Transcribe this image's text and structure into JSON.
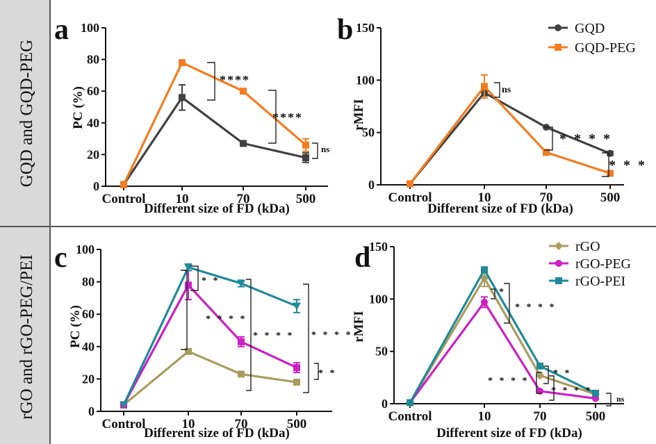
{
  "figure": {
    "row_labels": [
      "GQD and GQD-PEG",
      "rGO and rGO-PEG/PEI"
    ]
  },
  "colors": {
    "gqd": "#404040",
    "gqd_peg": "#f47c20",
    "rgo": "#a99c5d",
    "rgo_peg": "#cc1fc4",
    "rgo_pei": "#1f8a99",
    "row_label_bg": "#d9d9d9"
  },
  "chart_data": [
    {
      "panel": "a",
      "type": "line",
      "categories": [
        "Control",
        "10",
        "70",
        "500"
      ],
      "xlabel": "Different size of FD (kDa)",
      "ylabel": "PC (%)",
      "ylim": [
        0,
        100
      ],
      "yticks": [
        0,
        20,
        40,
        60,
        80,
        100
      ],
      "legend": null,
      "series": [
        {
          "name": "GQD",
          "color": "#404040",
          "marker": "square",
          "values": [
            1,
            56,
            27,
            18
          ],
          "errors": [
            1,
            8,
            1,
            3
          ]
        },
        {
          "name": "GQD-PEG",
          "color": "#f47c20",
          "marker": "square",
          "values": [
            1,
            78,
            60,
            26
          ],
          "errors": [
            1,
            1,
            1,
            4
          ]
        }
      ],
      "annotations": [
        {
          "text": "****",
          "at": "10"
        },
        {
          "text": "****",
          "at": "70"
        },
        {
          "text": "ns",
          "at": "500"
        }
      ]
    },
    {
      "panel": "b",
      "type": "line",
      "categories": [
        "Control",
        "10",
        "70",
        "500"
      ],
      "xlabel": "Different size of FD (kDa)",
      "ylabel": "rMFI",
      "ylim": [
        0,
        150
      ],
      "yticks": [
        0,
        50,
        100,
        150
      ],
      "legend": "top-right",
      "series": [
        {
          "name": "GQD",
          "color": "#404040",
          "marker": "circle",
          "values": [
            1,
            88,
            55,
            30
          ],
          "errors": [
            1,
            3,
            1,
            2
          ]
        },
        {
          "name": "GQD-PEG",
          "color": "#f47c20",
          "marker": "square",
          "values": [
            1,
            94,
            31,
            11
          ],
          "errors": [
            1,
            11,
            1,
            2
          ]
        }
      ],
      "annotations": [
        {
          "text": "ns",
          "at": "10"
        },
        {
          "text": "* * * *",
          "at": "70"
        },
        {
          "text": "* * *",
          "at": "500"
        }
      ]
    },
    {
      "panel": "c",
      "type": "line",
      "categories": [
        "Control",
        "10",
        "70",
        "500"
      ],
      "xlabel": "Different size of FD (kDa)",
      "ylabel": "PC (%)",
      "ylim": [
        0,
        100
      ],
      "yticks": [
        0,
        20,
        40,
        60,
        80,
        100
      ],
      "legend": null,
      "series": [
        {
          "name": "rGO",
          "color": "#a99c5d",
          "marker": "square",
          "values": [
            4,
            37,
            23,
            18
          ],
          "errors": [
            1,
            1,
            1,
            1
          ]
        },
        {
          "name": "rGO-PEG",
          "color": "#cc1fc4",
          "marker": "square",
          "values": [
            4,
            78,
            43,
            27
          ],
          "errors": [
            1,
            9,
            3,
            3
          ]
        },
        {
          "name": "rGO-PEI",
          "color": "#1f8a99",
          "marker": "triangle-down",
          "values": [
            4,
            89,
            79,
            65
          ],
          "errors": [
            1,
            2,
            2,
            4
          ]
        }
      ],
      "annotations": [
        {
          "text": "* *",
          "at": "10"
        },
        {
          "text": "* * * *",
          "at": "10"
        },
        {
          "text": "* * * *",
          "at": "70"
        },
        {
          "text": "* * * *",
          "at": "500"
        },
        {
          "text": "* *",
          "at": "500"
        }
      ]
    },
    {
      "panel": "d",
      "type": "line",
      "categories": [
        "Control",
        "10",
        "70",
        "500"
      ],
      "xlabel": "Different size of FD (kDa)",
      "ylabel": "rMFI",
      "ylim": [
        0,
        150
      ],
      "yticks": [
        0,
        50,
        100,
        150
      ],
      "legend": "top-right",
      "series": [
        {
          "name": "rGO",
          "color": "#a99c5d",
          "marker": "diamond",
          "values": [
            1,
            120,
            27,
            9
          ],
          "errors": [
            1,
            8,
            1,
            1
          ]
        },
        {
          "name": "rGO-PEG",
          "color": "#cc1fc4",
          "marker": "circle",
          "values": [
            1,
            97,
            12,
            5
          ],
          "errors": [
            1,
            5,
            1,
            1
          ]
        },
        {
          "name": "rGO-PEI",
          "color": "#1f8a99",
          "marker": "square",
          "values": [
            1,
            128,
            36,
            10
          ],
          "errors": [
            1,
            2,
            1,
            1
          ]
        }
      ],
      "annotations": [
        {
          "text": "*",
          "at": "10"
        },
        {
          "text": "* * * *",
          "at": "10"
        },
        {
          "text": "* *",
          "at": "70"
        },
        {
          "text": "* * * *",
          "at": "70-left"
        },
        {
          "text": "* * * *",
          "at": "70-right"
        },
        {
          "text": "ns",
          "at": "500"
        }
      ]
    }
  ]
}
